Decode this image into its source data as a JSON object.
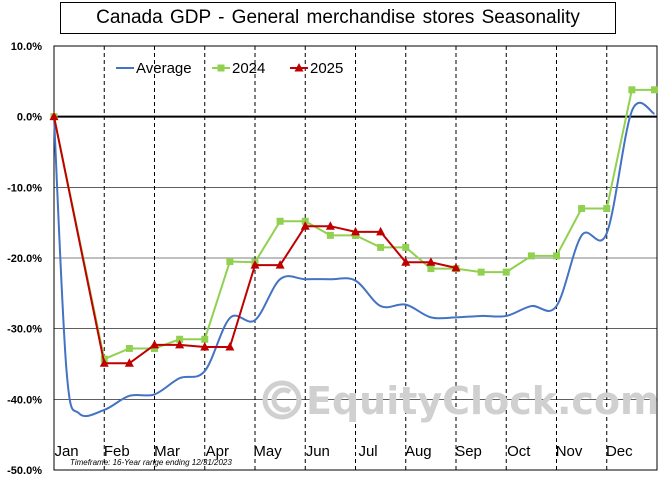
{
  "title": "Canada GDP - General merchandise stores Seasonality",
  "footnote": "Timeframe: 16-Year range ending 12/31/2023",
  "watermark": "EquityClock.com",
  "watermark_icon": "copyright-icon",
  "colors": {
    "average": "#4472c4",
    "y2024": "#92d050",
    "y2025": "#c00000",
    "grid": "#000000",
    "zero_line": "#000000"
  },
  "chart_data": {
    "type": "line",
    "title": "Canada GDP - General merchandise stores Seasonality",
    "xlabel": "",
    "ylabel": "",
    "categories": [
      "Jan",
      "Feb",
      "Mar",
      "Apr",
      "May",
      "Jun",
      "Jul",
      "Aug",
      "Sep",
      "Oct",
      "Nov",
      "Dec"
    ],
    "y_ticks": [
      "10.0%",
      "0.0%",
      "-10.0%",
      "-20.0%",
      "-30.0%",
      "-40.0%",
      "-50.0%"
    ],
    "ylim": [
      -50,
      10
    ],
    "xlim": [
      0,
      12
    ],
    "grid": "vertical dashed",
    "legend_position": "top-left",
    "series": [
      {
        "name": "Average",
        "color": "#4472c4",
        "marker": "none",
        "points": [
          [
            0,
            0
          ],
          [
            0.25,
            -36
          ],
          [
            0.5,
            -42
          ],
          [
            1.0,
            -41.5
          ],
          [
            1.5,
            -39.5
          ],
          [
            2.0,
            -39.3
          ],
          [
            2.5,
            -37
          ],
          [
            3.0,
            -36
          ],
          [
            3.5,
            -28.5
          ],
          [
            4.0,
            -28.8
          ],
          [
            4.5,
            -23
          ],
          [
            5.0,
            -23
          ],
          [
            5.5,
            -23
          ],
          [
            6.0,
            -23.2
          ],
          [
            6.5,
            -26.8
          ],
          [
            7.0,
            -26.6
          ],
          [
            7.5,
            -28.4
          ],
          [
            8.0,
            -28.4
          ],
          [
            8.5,
            -28.2
          ],
          [
            9.0,
            -28.2
          ],
          [
            9.5,
            -26.8
          ],
          [
            10.0,
            -26.8
          ],
          [
            10.5,
            -16.8
          ],
          [
            11.0,
            -16.5
          ],
          [
            11.5,
            0.8
          ],
          [
            11.95,
            0.4
          ]
        ]
      },
      {
        "name": "2024",
        "color": "#92d050",
        "marker": "square",
        "points": [
          [
            0,
            0
          ],
          [
            1.0,
            -34.3
          ],
          [
            1.5,
            -32.8
          ],
          [
            2.0,
            -32.8
          ],
          [
            2.5,
            -31.5
          ],
          [
            3.0,
            -31.5
          ],
          [
            3.5,
            -20.5
          ],
          [
            4.0,
            -20.6
          ],
          [
            4.5,
            -14.8
          ],
          [
            5.0,
            -14.8
          ],
          [
            5.5,
            -16.8
          ],
          [
            6.0,
            -16.8
          ],
          [
            6.5,
            -18.5
          ],
          [
            7.0,
            -18.5
          ],
          [
            7.5,
            -21.5
          ],
          [
            8.0,
            -21.5
          ],
          [
            8.5,
            -22
          ],
          [
            9.0,
            -22
          ],
          [
            9.5,
            -19.7
          ],
          [
            10.0,
            -19.7
          ],
          [
            10.5,
            -13
          ],
          [
            11.0,
            -13
          ],
          [
            11.5,
            3.8
          ],
          [
            11.95,
            3.8
          ]
        ]
      },
      {
        "name": "2025",
        "color": "#c00000",
        "marker": "triangle",
        "points": [
          [
            0,
            0
          ],
          [
            1.0,
            -34.9
          ],
          [
            1.5,
            -34.9
          ],
          [
            2.0,
            -32.3
          ],
          [
            2.5,
            -32.3
          ],
          [
            3.0,
            -32.6
          ],
          [
            3.5,
            -32.6
          ],
          [
            4.0,
            -21
          ],
          [
            4.5,
            -21
          ],
          [
            5.0,
            -15.5
          ],
          [
            5.5,
            -15.5
          ],
          [
            6.0,
            -16.3
          ],
          [
            6.5,
            -16.3
          ],
          [
            7.0,
            -20.6
          ],
          [
            7.5,
            -20.6
          ],
          [
            8.0,
            -21.4
          ]
        ]
      }
    ]
  }
}
